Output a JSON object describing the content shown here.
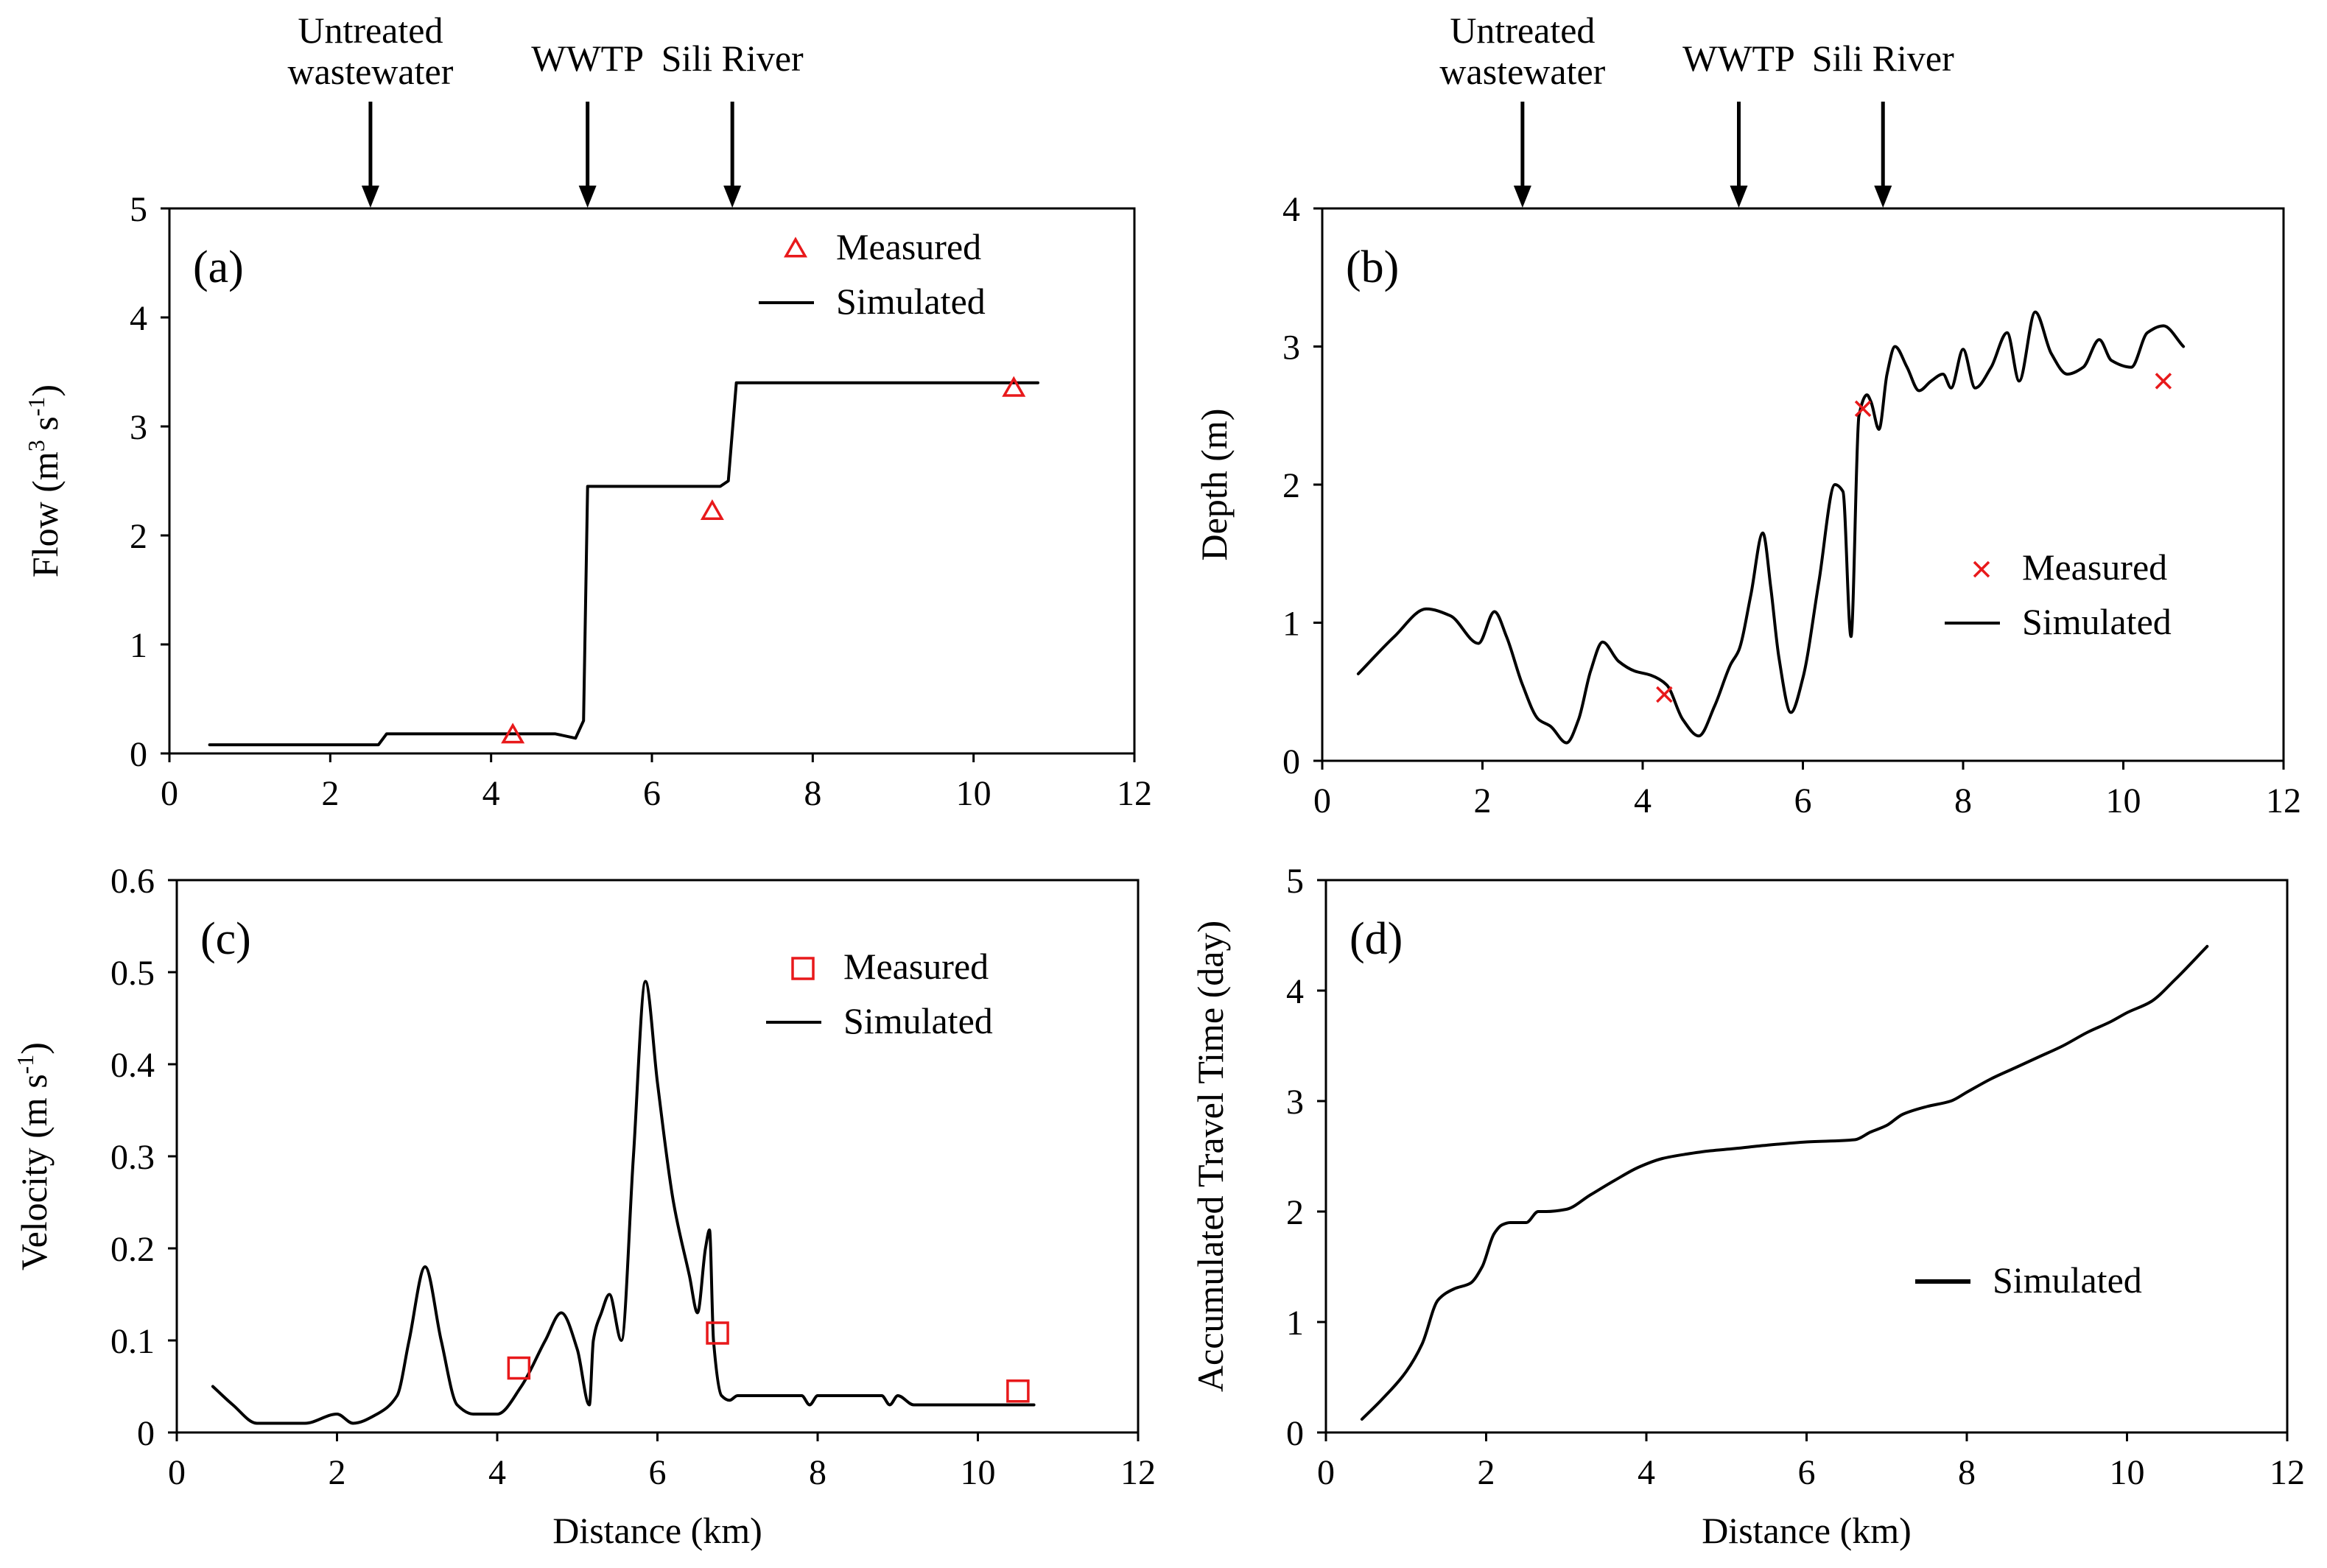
{
  "annotations": {
    "labels": [
      "Untreated\nwastewater",
      "WWTP",
      "Sili River"
    ],
    "x": [
      2.5,
      5.2,
      7.0
    ]
  },
  "chart_data": [
    {
      "id": "a",
      "type": "line",
      "panel_label": "(a)",
      "xlabel": "",
      "ylabel": "Flow  (m3 s-1)",
      "ylabel_parts": {
        "prefix": "Flow  (m",
        "sup1": "3",
        "mid": " s",
        "sup2": "-1",
        "suffix": ")"
      },
      "xlim": [
        0,
        12
      ],
      "ylim": [
        0,
        5
      ],
      "xticks": [
        0,
        2,
        4,
        6,
        8,
        10,
        12
      ],
      "yticks": [
        0,
        1,
        2,
        3,
        4,
        5
      ],
      "legend_position": "top-right",
      "show_annotations": true,
      "series": [
        {
          "name": "Simulated",
          "kind": "line",
          "x": [
            0.5,
            2.6,
            2.7,
            4.8,
            5.05,
            5.15,
            5.2,
            6.85,
            6.95,
            7.05,
            10.8
          ],
          "y": [
            0.08,
            0.08,
            0.18,
            0.18,
            0.14,
            0.3,
            2.45,
            2.45,
            2.5,
            3.4,
            3.4
          ]
        },
        {
          "name": "Measured",
          "kind": "marker",
          "marker": "triangle",
          "x": [
            4.27,
            6.75,
            10.5
          ],
          "y": [
            0.17,
            2.22,
            3.35
          ]
        }
      ]
    },
    {
      "id": "b",
      "type": "line",
      "panel_label": "(b)",
      "xlabel": "",
      "ylabel": "Depth  (m)",
      "xlim": [
        0,
        12
      ],
      "ylim": [
        0,
        4
      ],
      "xticks": [
        0,
        2,
        4,
        6,
        8,
        10,
        12
      ],
      "yticks": [
        0,
        1,
        2,
        3,
        4
      ],
      "legend_position": "center-right",
      "show_annotations": true,
      "series": [
        {
          "name": "Simulated",
          "kind": "line",
          "x": [
            0.45,
            0.9,
            1.3,
            1.6,
            1.95,
            2.15,
            2.3,
            2.5,
            2.7,
            2.85,
            3.05,
            3.2,
            3.35,
            3.5,
            3.7,
            3.9,
            4.1,
            4.3,
            4.5,
            4.7,
            4.9,
            5.1,
            5.2,
            5.35,
            5.5,
            5.6,
            5.7,
            5.85,
            6.0,
            6.2,
            6.4,
            6.5,
            6.6,
            6.7,
            6.8,
            6.85,
            6.95,
            7.05,
            7.15,
            7.3,
            7.45,
            7.6,
            7.75,
            7.85,
            8.0,
            8.15,
            8.35,
            8.55,
            8.7,
            8.9,
            9.1,
            9.3,
            9.5,
            9.7,
            9.85,
            10.1,
            10.3,
            10.5,
            10.75
          ],
          "y": [
            0.63,
            0.9,
            1.1,
            1.05,
            0.85,
            1.08,
            0.9,
            0.55,
            0.3,
            0.25,
            0.13,
            0.3,
            0.65,
            0.86,
            0.72,
            0.65,
            0.62,
            0.55,
            0.3,
            0.18,
            0.4,
            0.7,
            0.8,
            1.2,
            1.65,
            1.25,
            0.75,
            0.35,
            0.6,
            1.3,
            2.0,
            1.95,
            0.9,
            2.5,
            2.65,
            2.6,
            2.4,
            2.8,
            3.0,
            2.85,
            2.68,
            2.75,
            2.8,
            2.7,
            2.98,
            2.7,
            2.85,
            3.1,
            2.75,
            3.25,
            2.95,
            2.8,
            2.85,
            3.05,
            2.9,
            2.85,
            3.1,
            3.15,
            3.0
          ]
        },
        {
          "name": "Measured",
          "kind": "marker",
          "marker": "x",
          "x": [
            4.27,
            6.75,
            10.5
          ],
          "y": [
            0.48,
            2.55,
            2.75
          ]
        }
      ]
    },
    {
      "id": "c",
      "type": "line",
      "panel_label": "(c)",
      "xlabel": "Distance (km)",
      "ylabel": "Velocity  (m s-1)",
      "ylabel_parts": {
        "prefix": "Velocity  (m s",
        "sup1": "-1",
        "suffix": ")"
      },
      "xlim": [
        0,
        12
      ],
      "ylim": [
        0,
        0.6
      ],
      "xticks": [
        0,
        2,
        4,
        6,
        8,
        10,
        12
      ],
      "yticks": [
        0,
        0.1,
        0.2,
        0.3,
        0.4,
        0.5,
        0.6
      ],
      "legend_position": "top-right",
      "show_annotations": false,
      "series": [
        {
          "name": "Simulated",
          "kind": "line",
          "x": [
            0.45,
            0.7,
            1.0,
            1.3,
            1.6,
            2.0,
            2.2,
            2.5,
            2.75,
            2.9,
            3.1,
            3.3,
            3.5,
            3.7,
            4.0,
            4.3,
            4.6,
            4.8,
            5.0,
            5.15,
            5.2,
            5.3,
            5.4,
            5.55,
            5.7,
            5.85,
            6.0,
            6.2,
            6.4,
            6.5,
            6.6,
            6.65,
            6.7,
            6.8,
            6.9,
            7.0,
            7.8,
            7.9,
            8.0,
            8.8,
            8.9,
            9.0,
            9.2,
            10.7
          ],
          "y": [
            0.05,
            0.03,
            0.01,
            0.01,
            0.01,
            0.02,
            0.01,
            0.02,
            0.04,
            0.1,
            0.18,
            0.1,
            0.03,
            0.02,
            0.02,
            0.05,
            0.1,
            0.13,
            0.09,
            0.03,
            0.1,
            0.13,
            0.15,
            0.1,
            0.3,
            0.49,
            0.38,
            0.25,
            0.17,
            0.13,
            0.2,
            0.22,
            0.1,
            0.04,
            0.035,
            0.04,
            0.04,
            0.03,
            0.04,
            0.04,
            0.03,
            0.04,
            0.03,
            0.03
          ]
        },
        {
          "name": "Measured",
          "kind": "marker",
          "marker": "square",
          "x": [
            4.27,
            6.75,
            10.5
          ],
          "y": [
            0.07,
            0.108,
            0.045
          ]
        }
      ]
    },
    {
      "id": "d",
      "type": "line",
      "panel_label": "(d)",
      "xlabel": "Distance (km)",
      "ylabel": "Accumulated Travel Time  (day)",
      "xlim": [
        0,
        12
      ],
      "ylim": [
        0,
        5
      ],
      "xticks": [
        0,
        2,
        4,
        6,
        8,
        10,
        12
      ],
      "yticks": [
        0,
        1,
        2,
        3,
        4,
        5
      ],
      "legend_position": "lower-right",
      "show_annotations": false,
      "series": [
        {
          "name": "Simulated",
          "kind": "line",
          "x": [
            0.45,
            0.7,
            1.0,
            1.2,
            1.4,
            1.6,
            1.8,
            1.95,
            2.1,
            2.2,
            2.3,
            2.5,
            2.65,
            2.75,
            3.0,
            3.3,
            3.6,
            3.9,
            4.2,
            4.5,
            4.8,
            5.1,
            5.5,
            6.0,
            6.6,
            6.8,
            7.0,
            7.2,
            7.5,
            7.8,
            8.0,
            8.3,
            8.6,
            8.9,
            9.2,
            9.5,
            9.8,
            10.0,
            10.3,
            10.6,
            11.0
          ],
          "y": [
            0.12,
            0.3,
            0.55,
            0.8,
            1.2,
            1.3,
            1.35,
            1.5,
            1.8,
            1.88,
            1.9,
            1.9,
            2.0,
            2.0,
            2.02,
            2.15,
            2.28,
            2.4,
            2.48,
            2.52,
            2.55,
            2.57,
            2.6,
            2.63,
            2.65,
            2.72,
            2.78,
            2.88,
            2.95,
            3.0,
            3.08,
            3.2,
            3.3,
            3.4,
            3.5,
            3.62,
            3.72,
            3.8,
            3.9,
            4.1,
            4.4
          ]
        }
      ]
    }
  ]
}
